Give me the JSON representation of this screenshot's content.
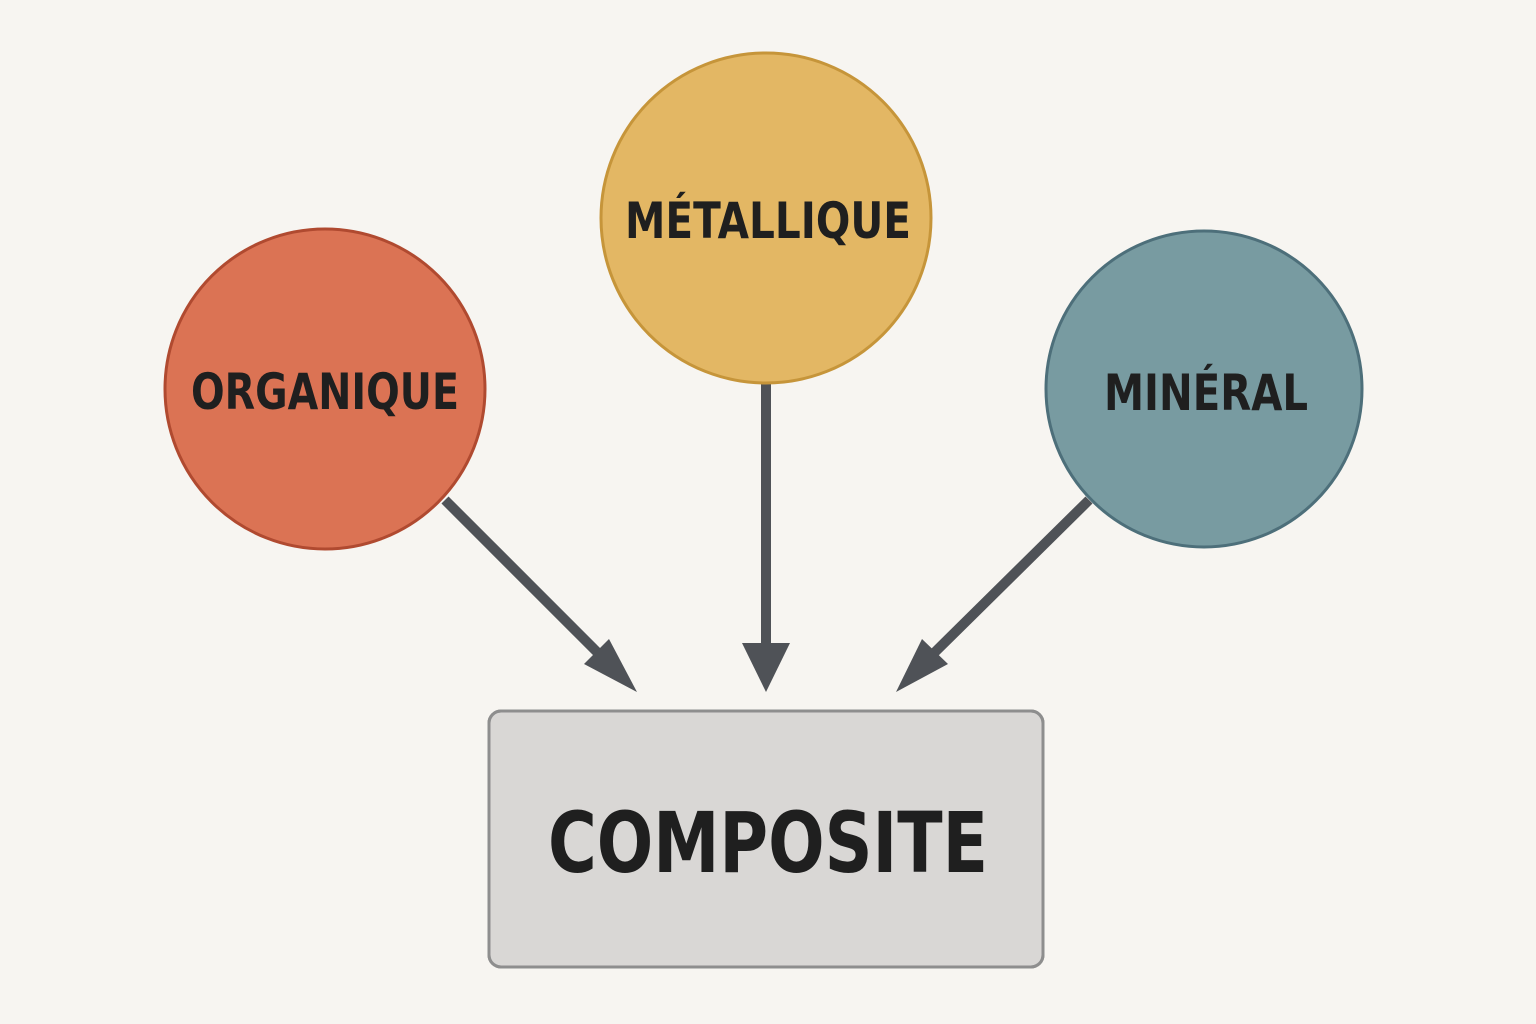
{
  "nodes": {
    "organique": {
      "label": "ORGANIQUE",
      "fill": "#db7354",
      "stroke": "#b04a30"
    },
    "metallique": {
      "label": "MÉTALLIQUE",
      "fill": "#e3b764",
      "stroke": "#c6953a"
    },
    "mineral": {
      "label": "MINÉRAL",
      "fill": "#789ba1",
      "stroke": "#4d6f7a"
    }
  },
  "target": {
    "label": "COMPOSITE",
    "fill": "#d9d7d5",
    "stroke": "#8e8e8e"
  },
  "arrow_color": "#4f5257",
  "background": "#f7f5f1"
}
